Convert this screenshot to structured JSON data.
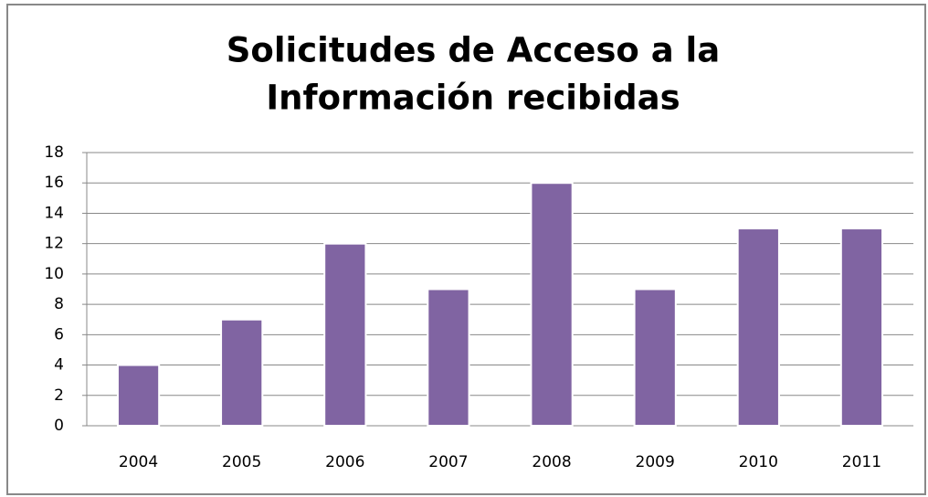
{
  "chart_data": {
    "type": "bar",
    "title": [
      "Solicitudes de Acceso a la",
      "Información recibidas"
    ],
    "categories": [
      "2004",
      "2005",
      "2006",
      "2007",
      "2008",
      "2009",
      "2010",
      "2011"
    ],
    "values": [
      4,
      7,
      12,
      9,
      16,
      9,
      13,
      13
    ],
    "color": "#8064a2",
    "ylim": [
      0,
      18
    ],
    "yticks": [
      0,
      2,
      4,
      6,
      8,
      10,
      12,
      14,
      16,
      18
    ],
    "grid": true
  }
}
